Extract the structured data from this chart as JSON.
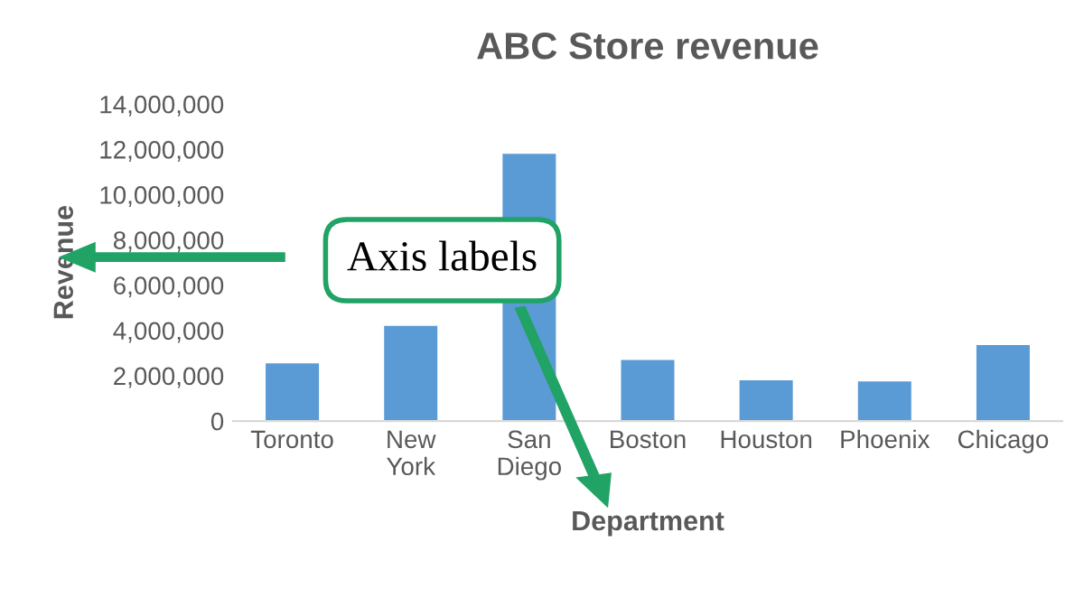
{
  "chart_data": {
    "type": "bar",
    "title": "ABC Store revenue",
    "xlabel": "Department",
    "ylabel": "Revenue",
    "categories": [
      "Toronto",
      "New\nYork",
      "San\nDiego",
      "Boston",
      "Houston",
      "Phoenix",
      "Chicago"
    ],
    "values": [
      2550000,
      4200000,
      11800000,
      2700000,
      1800000,
      1750000,
      3350000
    ],
    "color": "#5b9bd5",
    "ylim": [
      0,
      14000000
    ],
    "yticks": [
      {
        "value": 0,
        "label": "0"
      },
      {
        "value": 2000000,
        "label": "2,000,000"
      },
      {
        "value": 4000000,
        "label": "4,000,000"
      },
      {
        "value": 6000000,
        "label": "6,000,000"
      },
      {
        "value": 8000000,
        "label": "8,000,000"
      },
      {
        "value": 10000000,
        "label": "10,000,000"
      },
      {
        "value": 12000000,
        "label": "12,000,000"
      },
      {
        "value": 14000000,
        "label": "14,000,000"
      }
    ],
    "grid": false,
    "annotations": [
      "Axis labels"
    ]
  }
}
